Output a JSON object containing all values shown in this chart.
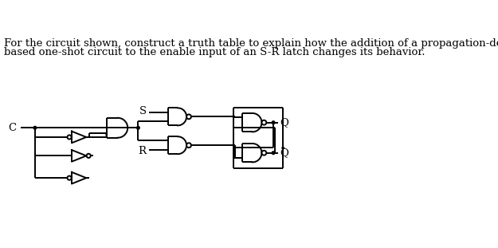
{
  "text_line1": "For the circuit shown, construct a truth table to explain how the addition of a propagation-delay",
  "text_line2": "based one-shot circuit to the enable input of an S-R latch changes its behavior.",
  "bg_color": "#ffffff",
  "line_color": "#000000",
  "text_color": "#000000",
  "font_size": 9.5,
  "label_C": "C",
  "label_S": "S",
  "label_R": "R",
  "label_Q": "Q",
  "label_Qbar": "Q"
}
